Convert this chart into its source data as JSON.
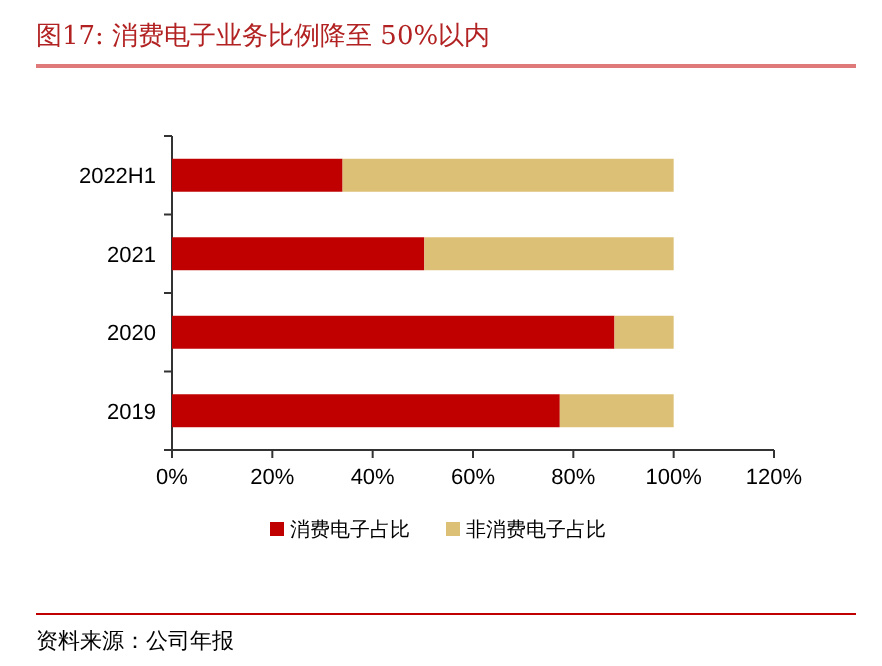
{
  "chart_data": {
    "type": "bar",
    "title": "图17:   消费电子业务比例降至 50%以内",
    "categories": [
      "2022H1",
      "2021",
      "2020",
      "2019"
    ],
    "series": [
      {
        "name": "消费电子占比",
        "color": "#c00000",
        "values": [
          34,
          50.3,
          88.2,
          77.3
        ]
      },
      {
        "name": "非消费电子占比",
        "color": "#dcc076",
        "values": [
          66,
          49.7,
          11.8,
          22.7
        ]
      }
    ],
    "stacked": true,
    "orientation": "horizontal",
    "xlim": [
      0,
      120
    ],
    "xticks": [
      {
        "value": 0,
        "label": "0%"
      },
      {
        "value": 20,
        "label": "20%"
      },
      {
        "value": 40,
        "label": "40%"
      },
      {
        "value": 60,
        "label": "60%"
      },
      {
        "value": 80,
        "label": "80%"
      },
      {
        "value": 100,
        "label": "100%"
      },
      {
        "value": 120,
        "label": "120%"
      }
    ],
    "grid": false,
    "legend": "bottom",
    "annotations": [
      "资料来源：公司年报"
    ]
  }
}
